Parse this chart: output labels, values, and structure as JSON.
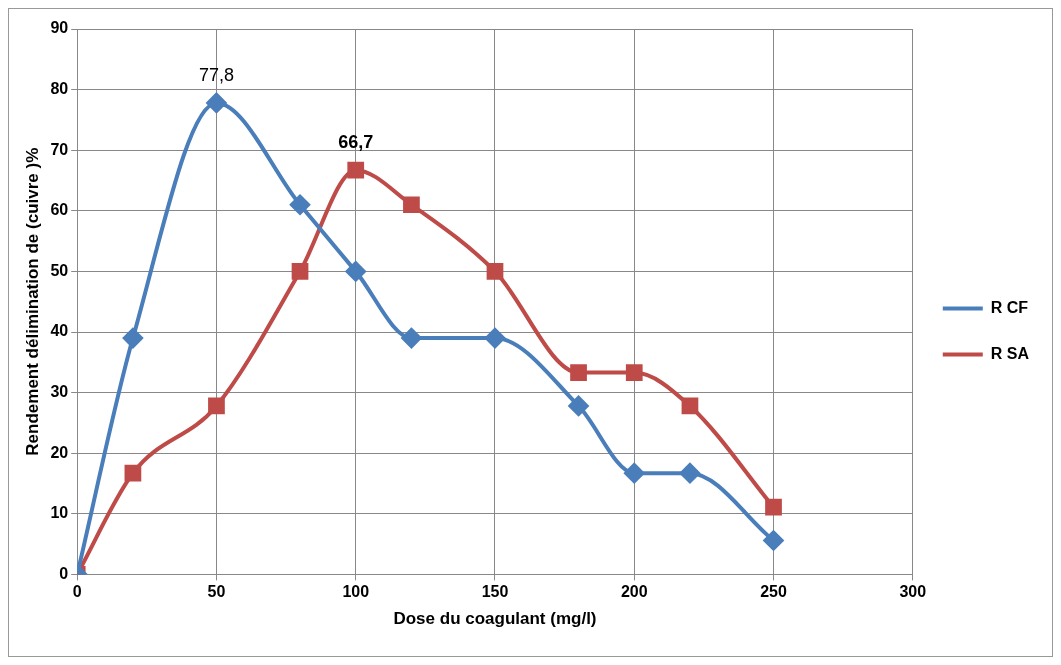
{
  "chart_data": {
    "type": "line",
    "xlabel": "Dose du coagulant (mg/l)",
    "ylabel": "Rendement délimination de (cuivre )%",
    "x": [
      0,
      20,
      50,
      80,
      100,
      120,
      150,
      180,
      200,
      220,
      250
    ],
    "series": [
      {
        "name": "R CF",
        "color": "#4a7ebb",
        "marker": "diamond",
        "values": [
          0,
          39,
          77.8,
          61,
          50,
          39,
          39,
          27.8,
          16.7,
          16.7,
          5.6
        ]
      },
      {
        "name": "R SA",
        "color": "#be4b48",
        "marker": "square",
        "values": [
          0,
          16.7,
          27.8,
          50,
          66.7,
          61,
          50,
          33.3,
          33.3,
          27.8,
          11.1
        ]
      }
    ],
    "xlim": [
      0,
      300
    ],
    "xticks": [
      0,
      50,
      100,
      150,
      200,
      250,
      300
    ],
    "ylim": [
      0,
      90
    ],
    "yticks": [
      0,
      10,
      20,
      30,
      40,
      50,
      60,
      70,
      80,
      90
    ],
    "grid": true,
    "legend": "right",
    "line_style": "solid",
    "annotations": [
      {
        "text": "77,8",
        "x": 50,
        "y": 77.8
      },
      {
        "text": "66,7",
        "x": 100,
        "y": 66.7
      }
    ]
  }
}
